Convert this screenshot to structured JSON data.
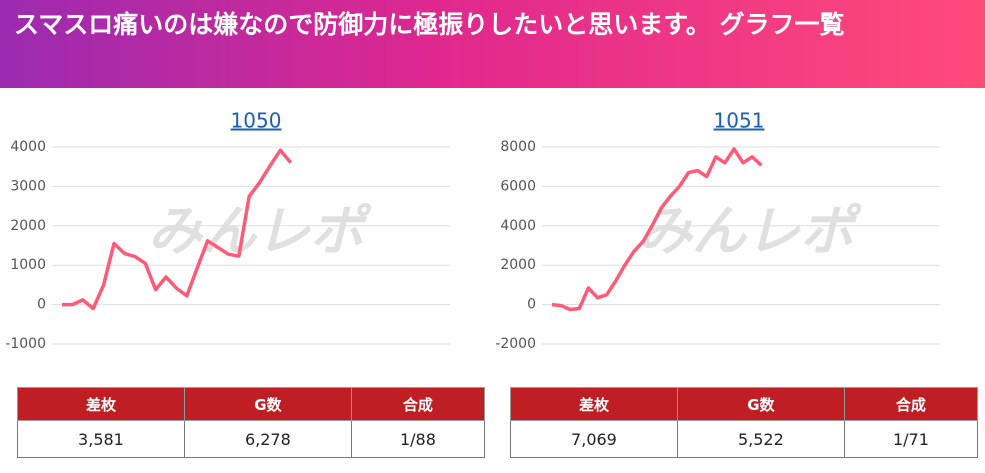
{
  "header": {
    "title": "スマスロ痛いのは嫌なので防御力に極振りしたいと思います。 グラフ一覧"
  },
  "watermark": "みんレポ",
  "chart_data": [
    {
      "type": "line",
      "title": "1050",
      "color": "#ff5a78",
      "values": [
        0,
        0,
        120,
        -100,
        500,
        1550,
        1300,
        1220,
        1050,
        380,
        700,
        420,
        220,
        930,
        1620,
        1450,
        1280,
        1230,
        2750,
        3100,
        3520,
        3920,
        3600
      ],
      "ylim": [
        -1000,
        4000
      ],
      "yticks": [
        -1000,
        0,
        1000,
        2000,
        3000,
        4000
      ],
      "grid": true
    },
    {
      "type": "line",
      "title": "1051",
      "color": "#ff5a78",
      "values": [
        0,
        -50,
        -250,
        -200,
        850,
        350,
        500,
        1200,
        2000,
        2700,
        3200,
        4000,
        4900,
        5500,
        6000,
        6700,
        6800,
        6500,
        7500,
        7200,
        7900,
        7200,
        7500,
        7069
      ],
      "ylim": [
        -2000,
        8000
      ],
      "yticks": [
        -2000,
        0,
        2000,
        4000,
        6000,
        8000
      ],
      "grid": true
    }
  ],
  "tables": [
    {
      "headers": [
        "差枚",
        "G数",
        "合成"
      ],
      "rows": [
        [
          "3,581",
          "6,278",
          "1/88"
        ]
      ]
    },
    {
      "headers": [
        "差枚",
        "G数",
        "合成"
      ],
      "rows": [
        [
          "7,069",
          "5,522",
          "1/71"
        ]
      ]
    }
  ]
}
